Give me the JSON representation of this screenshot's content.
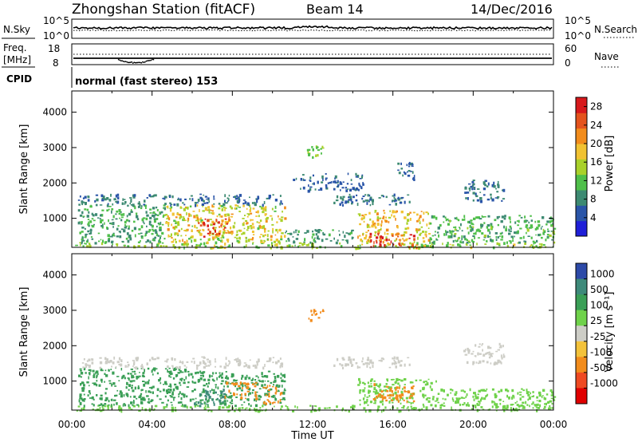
{
  "header": {
    "station": "Zhongshan Station (fitACF)",
    "beam": "Beam 14",
    "date": "14/Dec/2016"
  },
  "nsky_panel": {
    "left_label": "N.Sky",
    "right_label": "N.Search",
    "left_ticks": [
      "10^5",
      "10^0"
    ],
    "right_ticks": [
      "10^5",
      "10^0"
    ]
  },
  "freq_panel": {
    "left_label": "Freq.",
    "left_unit": "[MHz]",
    "right_label": "Nave",
    "left_ticks": [
      "18",
      "8"
    ],
    "right_ticks": [
      "60",
      "0"
    ]
  },
  "cpid": {
    "label": "CPID",
    "value": "normal (fast stereo) 153"
  },
  "colors": {
    "power_scale": [
      "#1f1fd8",
      "#2a55a8",
      "#3d8a72",
      "#4fbf4a",
      "#a9d12a",
      "#f1c232",
      "#f28c1c",
      "#e4531d",
      "#d7191c"
    ],
    "velocity_scale": [
      "#2d4aa8",
      "#3e8a7a",
      "#3a9f56",
      "#6fd24a",
      "#cdcdc6",
      "#f3c23a",
      "#f28c1c",
      "#ef4a22",
      "#e00000"
    ]
  },
  "chart_data": [
    {
      "type": "heatmap",
      "name": "power",
      "ylabel": "Slant Range [km]",
      "yticks": [
        1000,
        2000,
        3000,
        4000
      ],
      "ylim": [
        180,
        4600
      ],
      "xlim": [
        "00:00",
        "24:00"
      ],
      "colorbar": {
        "label": "Power [dB]",
        "ticks": [
          "4",
          "8",
          "12",
          "16",
          "20",
          "24",
          "28"
        ],
        "range": [
          0,
          30
        ]
      },
      "echo_regions": [
        {
          "t0": 0.1,
          "t1": 24.0,
          "r0": 180,
          "r1": 330,
          "value": 14
        },
        {
          "t0": 0.3,
          "t1": 4.6,
          "r0": 330,
          "r1": 1400,
          "value": 10
        },
        {
          "t0": 4.6,
          "t1": 10.6,
          "r0": 330,
          "r1": 1400,
          "value": 17
        },
        {
          "t0": 6.2,
          "t1": 7.8,
          "r0": 450,
          "r1": 1000,
          "value": 24
        },
        {
          "t0": 10.6,
          "t1": 14.0,
          "r0": 330,
          "r1": 700,
          "value": 9
        },
        {
          "t0": 14.2,
          "t1": 17.8,
          "r0": 350,
          "r1": 1250,
          "value": 18
        },
        {
          "t0": 14.8,
          "t1": 17.2,
          "r0": 200,
          "r1": 600,
          "value": 26
        },
        {
          "t0": 17.8,
          "t1": 24.0,
          "r0": 330,
          "r1": 1100,
          "value": 11
        },
        {
          "t0": 0.3,
          "t1": 10.5,
          "r0": 1400,
          "r1": 1700,
          "value": 7
        },
        {
          "t0": 13.0,
          "t1": 17.0,
          "r0": 1400,
          "r1": 1700,
          "value": 7
        },
        {
          "t0": 11.0,
          "t1": 14.5,
          "r0": 1800,
          "r1": 2300,
          "value": 6
        },
        {
          "t0": 19.5,
          "t1": 21.5,
          "r0": 1500,
          "r1": 2100,
          "value": 7
        },
        {
          "t0": 11.7,
          "t1": 12.5,
          "r0": 2750,
          "r1": 3100,
          "value": 14
        },
        {
          "t0": 16.2,
          "t1": 17.1,
          "r0": 2100,
          "r1": 2600,
          "value": 6
        }
      ]
    },
    {
      "type": "heatmap",
      "name": "velocity",
      "ylabel": "Slant Range [km]",
      "yticks": [
        1000,
        2000,
        3000,
        4000
      ],
      "ylim": [
        180,
        4600
      ],
      "xlim": [
        "00:00",
        "24:00"
      ],
      "xticks": [
        "00:00",
        "04:00",
        "08:00",
        "12:00",
        "16:00",
        "20:00",
        "00:00"
      ],
      "xlabel": "Time UT",
      "colorbar": {
        "label": "Velocity [m s⁻¹]",
        "ticks": [
          "1000",
          "500",
          "100",
          "25",
          "-25",
          "-100",
          "-500",
          "-1000"
        ]
      },
      "echo_regions": [
        {
          "t0": 0.1,
          "t1": 24.0,
          "r0": 180,
          "r1": 330,
          "value": 60
        },
        {
          "t0": 0.3,
          "t1": 5.8,
          "r0": 330,
          "r1": 1400,
          "value": 300
        },
        {
          "t0": 5.8,
          "t1": 10.6,
          "r0": 330,
          "r1": 1300,
          "value": 150
        },
        {
          "t0": 6.0,
          "t1": 7.6,
          "r0": 330,
          "r1": 800,
          "value": 700
        },
        {
          "t0": 7.6,
          "t1": 9.2,
          "r0": 500,
          "r1": 1000,
          "value": -200
        },
        {
          "t0": 9.5,
          "t1": 10.4,
          "r0": 380,
          "r1": 900,
          "value": -300
        },
        {
          "t0": 14.2,
          "t1": 18.2,
          "r0": 330,
          "r1": 1100,
          "value": 60
        },
        {
          "t0": 15.0,
          "t1": 17.0,
          "r0": 450,
          "r1": 950,
          "value": -150
        },
        {
          "t0": 18.2,
          "t1": 24.0,
          "r0": 330,
          "r1": 800,
          "value": 40
        },
        {
          "t0": 21.5,
          "t1": 24.0,
          "r0": 200,
          "r1": 380,
          "value": 80
        },
        {
          "t0": 0.5,
          "t1": 10.5,
          "r0": 1400,
          "r1": 1700,
          "value": 0
        },
        {
          "t0": 13.0,
          "t1": 17.0,
          "r0": 1400,
          "r1": 1700,
          "value": 0
        },
        {
          "t0": 19.5,
          "t1": 21.5,
          "r0": 1500,
          "r1": 2100,
          "value": 0
        },
        {
          "t0": 11.7,
          "t1": 12.5,
          "r0": 2750,
          "r1": 3100,
          "value": -250
        }
      ]
    }
  ]
}
